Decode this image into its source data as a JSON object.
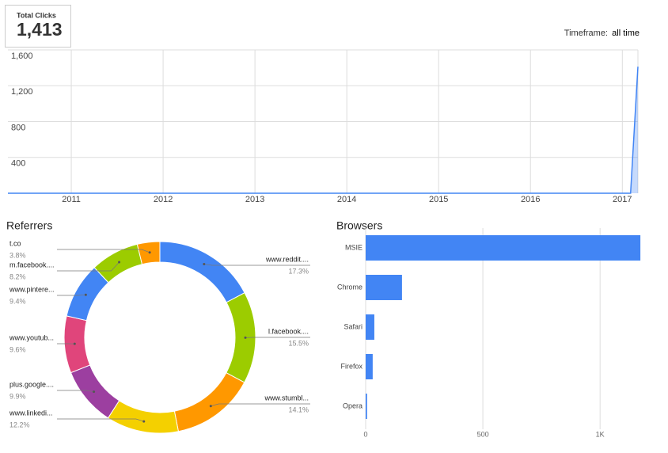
{
  "total_clicks": {
    "label": "Total Clicks",
    "value": "1,413"
  },
  "timeframe": {
    "label": "Timeframe:",
    "value": "all time"
  },
  "chart_data": [
    {
      "type": "area",
      "x": [
        2010.31,
        2017.09,
        2017.17
      ],
      "series": [
        {
          "color": "#4285f4",
          "values": [
            0,
            0,
            1413
          ]
        }
      ],
      "xlim": [
        2010.31,
        2017.17
      ],
      "xticks": [
        2011,
        2012,
        2013,
        2014,
        2015,
        2016,
        2017
      ],
      "ylim": [
        0,
        1600
      ],
      "yticks": [
        {
          "value": 400,
          "label": "400"
        },
        {
          "value": 800,
          "label": "800"
        },
        {
          "value": 1200,
          "label": "1,200"
        },
        {
          "value": 1600,
          "label": "1,600"
        }
      ],
      "grid": true
    },
    {
      "type": "pie",
      "title": "Referrers",
      "categories": [
        "www.reddit....",
        "l.facebook....",
        "www.stumbl...",
        "www.linkedi...",
        "plus.google....",
        "www.youtub...",
        "www.pintere...",
        "m.facebook....",
        "t.co"
      ],
      "values": [
        17.3,
        15.5,
        14.1,
        12.2,
        9.9,
        9.6,
        9.4,
        8.2,
        3.8
      ],
      "value_labels": [
        "17.3%",
        "15.5%",
        "14.1%",
        "12.2%",
        "9.9%",
        "9.6%",
        "9.4%",
        "8.2%",
        "3.8%"
      ],
      "colors": [
        "#4285f4",
        "#9ccc00",
        "#ff9800",
        "#f4d000",
        "#9c3fa0",
        "#e0457b",
        "#4285f4",
        "#9ccc00",
        "#ff9800"
      ]
    },
    {
      "type": "hbar",
      "title": "Browsers",
      "categories": [
        "MSIE",
        "Chrome",
        "Safari",
        "Firefox",
        "Opera"
      ],
      "values": [
        1172,
        155,
        37,
        30,
        6
      ],
      "color": "#4285f4",
      "xlim": [
        0,
        1175
      ],
      "xticks": [
        0,
        500,
        {
          "value": 1000,
          "label": "1K"
        }
      ],
      "grid": true
    }
  ]
}
